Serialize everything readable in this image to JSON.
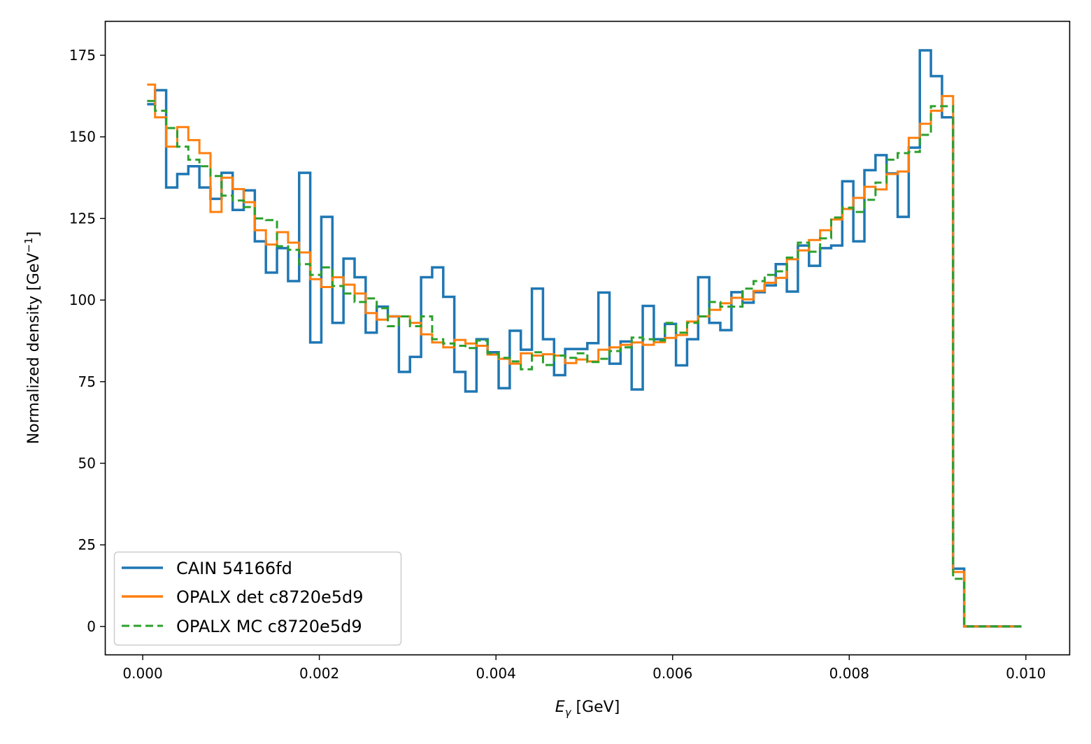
{
  "chart_data": {
    "type": "line",
    "style": "step histogram",
    "title": "",
    "xlabel_main": "E",
    "xlabel_sub": "γ",
    "xlabel_unit": " [GeV]",
    "ylabel": "Normalized density [GeV",
    "ylabel_sup": "−1",
    "ylabel_end": "]",
    "xlim": [
      -0.000428,
      0.0105
    ],
    "ylim": [
      -8.8,
      185.5
    ],
    "xticks": [
      0.0,
      0.002,
      0.004,
      0.006,
      0.008,
      0.01
    ],
    "xtick_labels": [
      "0.000",
      "0.002",
      "0.004",
      "0.006",
      "0.008",
      "0.010"
    ],
    "yticks": [
      0,
      25,
      50,
      75,
      100,
      125,
      150,
      175
    ],
    "ytick_labels": [
      "0",
      "25",
      "50",
      "75",
      "100",
      "125",
      "150",
      "175"
    ],
    "grid": false,
    "legend_position": "lower-left",
    "x_start": 5e-05,
    "bin_edges_from": 0.00014,
    "bin_width": 0.0001255,
    "x_end": 0.00995,
    "series": [
      {
        "name": "CAIN 54166fd",
        "color": "#1f77b4",
        "linestyle": "solid",
        "values": [
          160,
          164.3,
          134.5,
          138.6,
          141,
          134.5,
          131,
          139,
          127.6,
          133.6,
          118,
          108.4,
          115.9,
          105.8,
          139,
          87,
          125.5,
          93,
          112.7,
          107,
          90,
          98,
          95,
          78,
          82.6,
          107,
          110,
          101,
          78,
          72,
          88,
          84,
          73,
          90.6,
          84.8,
          103.5,
          88,
          77,
          85,
          85,
          86.8,
          102.3,
          80.5,
          87.3,
          72.6,
          98.2,
          88,
          92.7,
          80,
          88,
          107,
          93,
          90.8,
          102.4,
          99.2,
          102.4,
          104.5,
          111,
          102.6,
          116.7,
          110.5,
          115.9,
          116.7,
          136.4,
          118,
          139.8,
          144.4,
          138.8,
          125.5,
          146.7,
          176.5,
          168.6,
          156,
          17.7
        ]
      },
      {
        "name": "OPALX det c8720e5d9",
        "color": "#ff7f0e",
        "linestyle": "solid",
        "values": [
          166,
          156,
          147,
          153,
          149,
          145,
          127,
          137.5,
          134,
          130,
          121.4,
          117,
          120.8,
          117.6,
          114.6,
          106.4,
          104,
          107,
          104.7,
          102,
          96,
          94,
          95,
          95,
          93,
          89.5,
          87,
          85.5,
          87.8,
          86.7,
          86,
          83.3,
          82,
          80.5,
          83.7,
          83,
          83.4,
          83,
          80.7,
          81.8,
          81.2,
          84.8,
          85.5,
          86.3,
          87,
          86.3,
          87.1,
          88.4,
          89.3,
          93.4,
          95,
          97,
          99,
          100.7,
          100.2,
          102.8,
          105.3,
          106.8,
          112.5,
          115.2,
          118.4,
          121.4,
          124.7,
          127.9,
          131.3,
          134.7,
          133.9,
          138.6,
          139.4,
          149.7,
          154,
          158,
          162.5,
          16.7
        ]
      },
      {
        "name": "OPALX MC c8720e5d9",
        "color": "#2ca02c",
        "linestyle": "dashed",
        "values": [
          161,
          158,
          152.7,
          147,
          143,
          141,
          138,
          132,
          130.5,
          128.5,
          125,
          124.5,
          116.5,
          115.4,
          111,
          107.7,
          110,
          104.3,
          102,
          99.4,
          100.5,
          97.5,
          92,
          95,
          92,
          95,
          88,
          86.7,
          86,
          85.3,
          87.6,
          83.7,
          82.3,
          81.2,
          78.8,
          84,
          80.1,
          83,
          82.3,
          83.7,
          81,
          82,
          84.4,
          85.5,
          88.5,
          88,
          87.6,
          93,
          90,
          93,
          95,
          99.4,
          98,
          98,
          103.5,
          105.8,
          107.7,
          108.8,
          113,
          117.6,
          114.8,
          118.9,
          125.3,
          128.3,
          127,
          130.7,
          136,
          143,
          145,
          145.4,
          150.6,
          159.4,
          159.4,
          14.6
        ]
      }
    ]
  }
}
